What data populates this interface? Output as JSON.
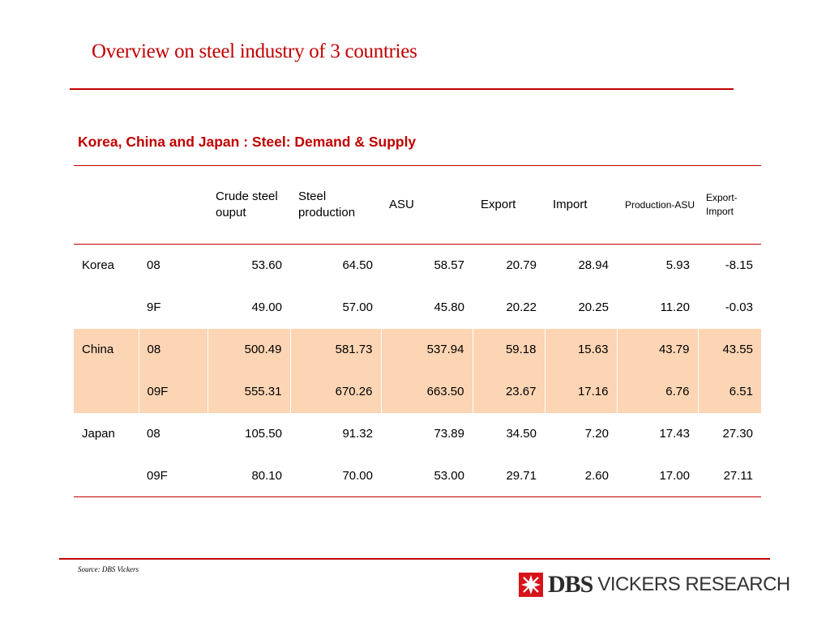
{
  "slide_title": "Overview on steel industry of 3 countries",
  "table_title": "Korea, China and Japan : Steel: Demand & Supply",
  "headers": [
    "",
    "",
    "Crude steel ouput",
    "Steel production",
    "ASU",
    "Export",
    "Import",
    "Production-ASU",
    "Export-Import"
  ],
  "rows": [
    [
      "Korea",
      "08",
      "53.60",
      "64.50",
      "58.57",
      "20.79",
      "28.94",
      "5.93",
      "-8.15"
    ],
    [
      "",
      "9F",
      "49.00",
      "57.00",
      "45.80",
      "20.22",
      "20.25",
      "11.20",
      "-0.03"
    ],
    [
      "China",
      "08",
      "500.49",
      "581.73",
      "537.94",
      "59.18",
      "15.63",
      "43.79",
      "43.55"
    ],
    [
      "",
      "09F",
      "555.31",
      "670.26",
      "663.50",
      "23.67",
      "17.16",
      "6.76",
      "6.51"
    ],
    [
      "Japan",
      "08",
      "105.50",
      "91.32",
      "73.89",
      "34.50",
      "7.20",
      "17.43",
      "27.30"
    ],
    [
      "",
      "09F",
      "80.10",
      "70.00",
      "53.00",
      "29.71",
      "2.60",
      "17.00",
      "27.11"
    ]
  ],
  "source": "Source: DBS Vickers",
  "logo": {
    "brand": "DBS",
    "tagline": "VICKERS RESEARCH",
    "icon": "dbs-star-logo-icon"
  },
  "colors": {
    "accent": "#c00000",
    "highlight_row": "#fcd5b4"
  }
}
